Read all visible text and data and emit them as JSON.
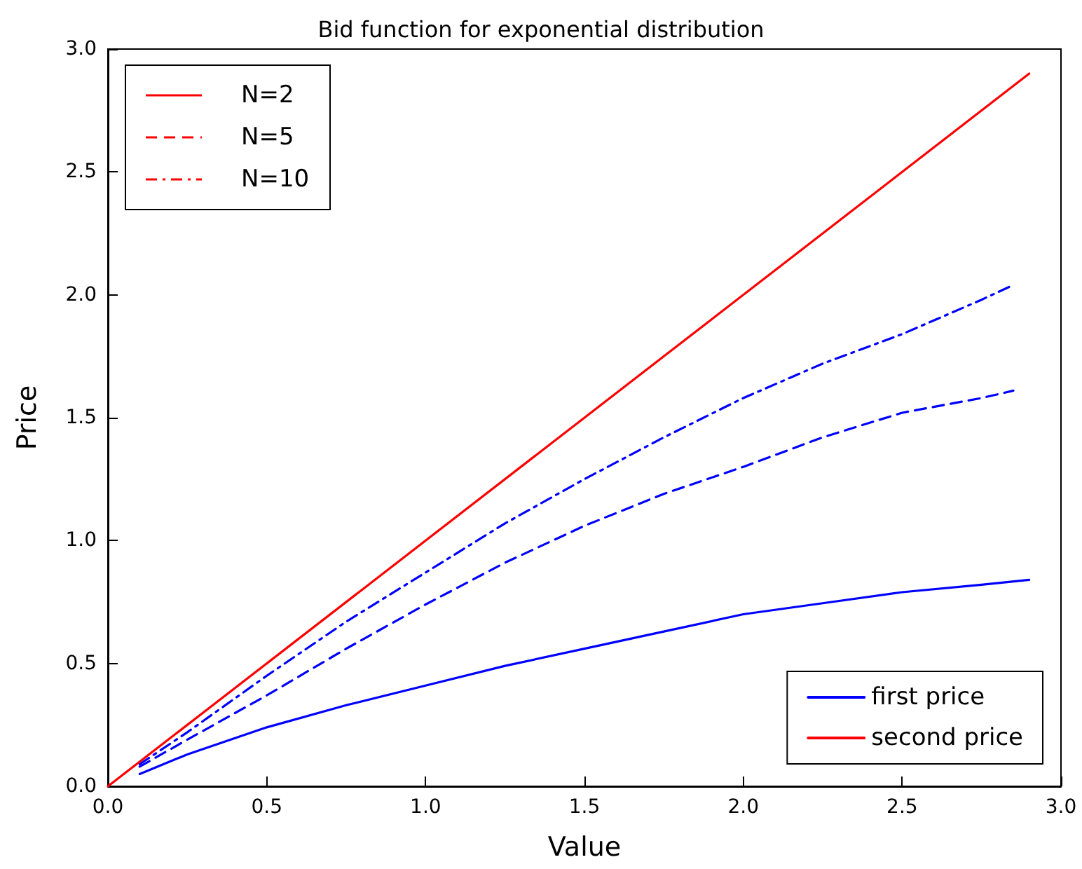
{
  "chart_data": {
    "type": "line",
    "title": "Bid function for exponential distribution",
    "xlabel": "Value",
    "ylabel": "Price",
    "marker": "none",
    "grid": false,
    "legend": "bottom right",
    "annotations": [
      "N=2",
      "N=5",
      "N=10"
    ],
    "xlim": [
      0,
      3
    ],
    "ylim": [
      0,
      3
    ],
    "xticks": [
      {
        "value": 0,
        "label": "0.0"
      },
      {
        "value": 0.5,
        "label": "0.5"
      },
      {
        "value": 1,
        "label": "1.0"
      },
      {
        "value": 1.5,
        "label": "1.5"
      },
      {
        "value": 2,
        "label": "2.0"
      },
      {
        "value": 2.5,
        "label": "2.5"
      },
      {
        "value": 3,
        "label": "3.0"
      }
    ],
    "yticks": [
      {
        "value": 0,
        "label": "0.0"
      },
      {
        "value": 0.5,
        "label": "0.5"
      },
      {
        "value": 1,
        "label": "1.0"
      },
      {
        "value": 1.5,
        "label": "1.5"
      },
      {
        "value": 2,
        "label": "2.0"
      },
      {
        "value": 2.5,
        "label": "2.5"
      },
      {
        "value": 3,
        "label": "3.0"
      }
    ],
    "series": [
      {
        "name": "first price",
        "color": "#0000ff",
        "line_style": "solid",
        "x": [
          0.1,
          0.25,
          0.5,
          0.75,
          1,
          1.25,
          1.5,
          1.75,
          2,
          2.25,
          2.5,
          2.75,
          2.9
        ],
        "values": [
          0.05,
          0.13,
          0.24,
          0.33,
          0.41,
          0.49,
          0.56,
          0.63,
          0.7,
          0.745,
          0.79,
          0.82,
          0.84
        ]
      },
      {
        "color": "#0000ff",
        "line_style": "dashed",
        "x": [
          0.1,
          0.25,
          0.5,
          0.75,
          1,
          1.25,
          1.5,
          1.75,
          2,
          2.25,
          2.5,
          2.75,
          2.85
        ],
        "values": [
          0.08,
          0.19,
          0.37,
          0.56,
          0.74,
          0.91,
          1.06,
          1.19,
          1.3,
          1.42,
          1.52,
          1.58,
          1.61
        ]
      },
      {
        "color": "#0000ff",
        "line_style": "dashdot",
        "x": [
          0.1,
          0.25,
          0.5,
          0.75,
          1,
          1.25,
          1.5,
          1.75,
          2,
          2.25,
          2.5,
          2.75,
          2.85
        ],
        "values": [
          0.09,
          0.22,
          0.45,
          0.67,
          0.87,
          1.07,
          1.25,
          1.42,
          1.58,
          1.72,
          1.84,
          1.98,
          2.04
        ]
      },
      {
        "name": "second price",
        "color": "#ff0000",
        "line_style": "solid",
        "x": [
          0,
          2.9
        ],
        "values": [
          0,
          2.9
        ]
      }
    ]
  }
}
